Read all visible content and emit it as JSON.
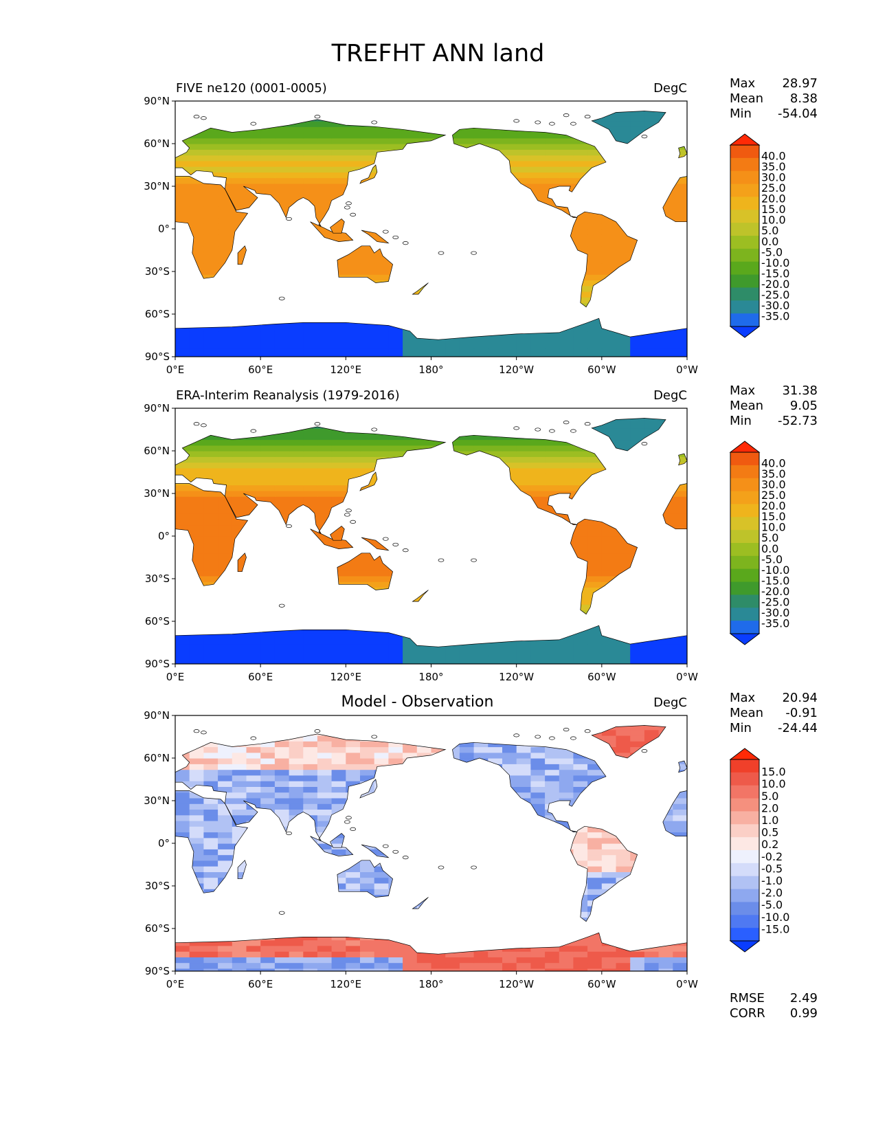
{
  "figure_title": "TREFHT ANN land",
  "colors": {
    "frame": "#000000",
    "coast": "#000000",
    "temp_scale": [
      "#0a3dff",
      "#1f6bea",
      "#2a8996",
      "#2e8c68",
      "#3f9a2c",
      "#5aa81c",
      "#7db41e",
      "#9cbe22",
      "#bec32a",
      "#d8c228",
      "#efb41c",
      "#f4a11a",
      "#f59018",
      "#f37b14",
      "#f05a10",
      "#ff2a06"
    ],
    "diff_scale": [
      "#0a3dff",
      "#2a5fff",
      "#4f79f2",
      "#6b8de9",
      "#8ea8ef",
      "#b1c2f4",
      "#d4dcfa",
      "#eef1fd",
      "#fde8e4",
      "#fbcfc6",
      "#f8b0a2",
      "#f5907e",
      "#f27566",
      "#ee5a4a",
      "#f0402a",
      "#ff2a06"
    ]
  },
  "chart_data": [
    {
      "type": "heatmap",
      "projection": "plate-carree",
      "title_left": "FIVE ne120 (0001-0005)",
      "title_center": "",
      "title_right": "DegC",
      "x_ticks": [
        "0°E",
        "60°E",
        "120°E",
        "180°",
        "120°W",
        "60°W",
        "0°W"
      ],
      "y_ticks": [
        "90°N",
        "60°N",
        "30°N",
        "0°",
        "30°S",
        "60°S",
        "90°S"
      ],
      "xlim": [
        0,
        360
      ],
      "ylim": [
        -90,
        90
      ],
      "stats": [
        {
          "label": "Max",
          "value": "28.97"
        },
        {
          "label": "Mean",
          "value": "8.38"
        },
        {
          "label": "Min",
          "value": "-54.04"
        }
      ],
      "colorbar": {
        "extend": "both",
        "levels": [
          "40.0",
          "35.0",
          "30.0",
          "25.0",
          "20.0",
          "15.0",
          "10.0",
          "5.0",
          "0.0",
          "-5.0",
          "-10.0",
          "-15.0",
          "-20.0",
          "-25.0",
          "-30.0",
          "-35.0"
        ]
      },
      "field_values": {
        "antarctica_east": -50,
        "antarctica_west": -28,
        "greenland": -27,
        "tropics": 25,
        "midlat": 12,
        "arctic": -10
      }
    },
    {
      "type": "heatmap",
      "projection": "plate-carree",
      "title_left": "ERA-Interim Reanalysis (1979-2016)",
      "title_center": "",
      "title_right": "DegC",
      "x_ticks": [
        "0°E",
        "60°E",
        "120°E",
        "180°",
        "120°W",
        "60°W",
        "0°W"
      ],
      "y_ticks": [
        "90°N",
        "60°N",
        "30°N",
        "0°",
        "30°S",
        "60°S",
        "90°S"
      ],
      "xlim": [
        0,
        360
      ],
      "ylim": [
        -90,
        90
      ],
      "stats": [
        {
          "label": "Max",
          "value": "31.38"
        },
        {
          "label": "Mean",
          "value": "9.05"
        },
        {
          "label": "Min",
          "value": "-52.73"
        }
      ],
      "colorbar": {
        "extend": "both",
        "levels": [
          "40.0",
          "35.0",
          "30.0",
          "25.0",
          "20.0",
          "15.0",
          "10.0",
          "5.0",
          "0.0",
          "-5.0",
          "-10.0",
          "-15.0",
          "-20.0",
          "-25.0",
          "-30.0",
          "-35.0"
        ]
      },
      "field_values": {
        "antarctica_east": -50,
        "antarctica_west": -27,
        "greenland": -27,
        "tropics": 26,
        "midlat": 12,
        "arctic": -11
      }
    },
    {
      "type": "heatmap",
      "projection": "plate-carree",
      "title_left": "",
      "title_center": "Model - Observation",
      "title_right": "DegC",
      "x_ticks": [
        "0°E",
        "60°E",
        "120°E",
        "180°",
        "120°W",
        "60°W",
        "0°W"
      ],
      "y_ticks": [
        "90°N",
        "60°N",
        "30°N",
        "0°",
        "30°S",
        "60°S",
        "90°S"
      ],
      "xlim": [
        0,
        360
      ],
      "ylim": [
        -90,
        90
      ],
      "stats": [
        {
          "label": "Max",
          "value": "20.94"
        },
        {
          "label": "Mean",
          "value": "-0.91"
        },
        {
          "label": "Min",
          "value": "-24.44"
        }
      ],
      "colorbar": {
        "extend": "both",
        "levels": [
          "15.0",
          "10.0",
          "5.0",
          "2.0",
          "1.0",
          "0.5",
          "0.2",
          "-0.2",
          "-0.5",
          "-1.0",
          "-2.0",
          "-5.0",
          "-10.0",
          "-15.0"
        ]
      },
      "metrics": [
        {
          "label": "RMSE",
          "value": "2.49"
        },
        {
          "label": "CORR",
          "value": "0.99"
        }
      ]
    }
  ]
}
